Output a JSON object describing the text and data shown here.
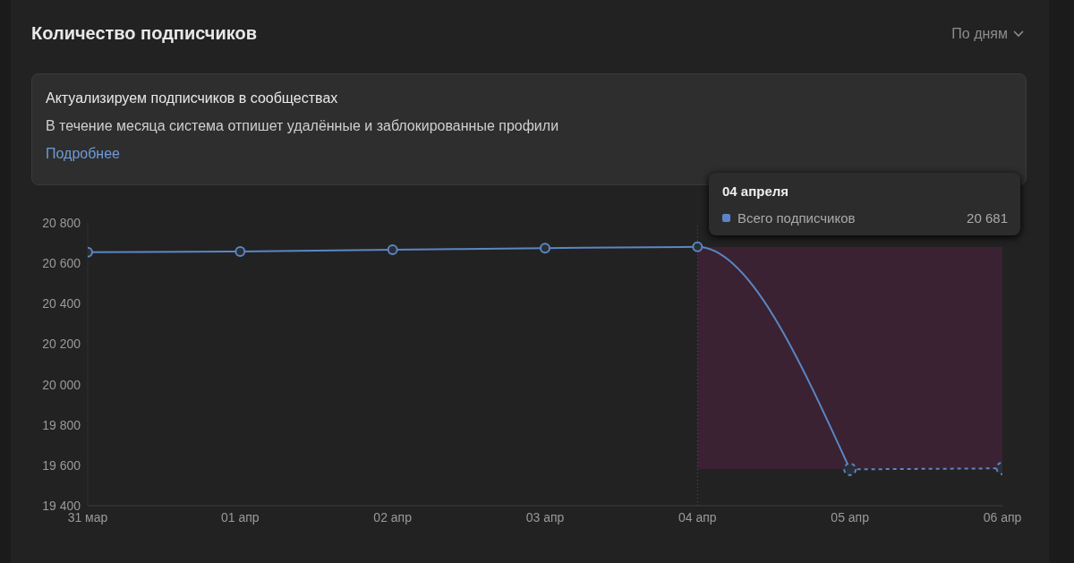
{
  "chart_data": {
    "type": "line",
    "title": "Количество подписчиков",
    "annotations": [
      "По дням",
      "Актуализируем подписчиков в сообществах",
      "В течение месяца система отпишет удалённые и заблокированные профили",
      "Подробнее",
      "04 апреля",
      "20 681"
    ],
    "categories": [
      "31 мар",
      "01 апр",
      "02 апр",
      "03 апр",
      "04 апр",
      "05 апр",
      "06 апр"
    ],
    "series": [
      {
        "name": "Всего подписчиков",
        "color": "#5b86c5",
        "values": [
          20655,
          20658,
          20667,
          20675,
          20681,
          19580,
          null
        ]
      },
      {
        "color": "#5b86c5",
        "line_style": "dashed",
        "values": [
          null,
          null,
          null,
          null,
          null,
          19580,
          19585
        ]
      }
    ],
    "ylim": [
      19400,
      20800
    ],
    "yticks": [
      19400,
      19600,
      19800,
      20000,
      20200,
      20400,
      20600,
      20800
    ],
    "marker": "circle",
    "line_style": "solid",
    "ref_lines": [
      {
        "axis": "x",
        "value": "04 апр",
        "color": "#555555",
        "line_style": "dotted"
      }
    ],
    "bands": [
      {
        "axis": "x",
        "from": "04 апр",
        "to": "06 апр",
        "color": "#3a2232"
      }
    ]
  }
}
